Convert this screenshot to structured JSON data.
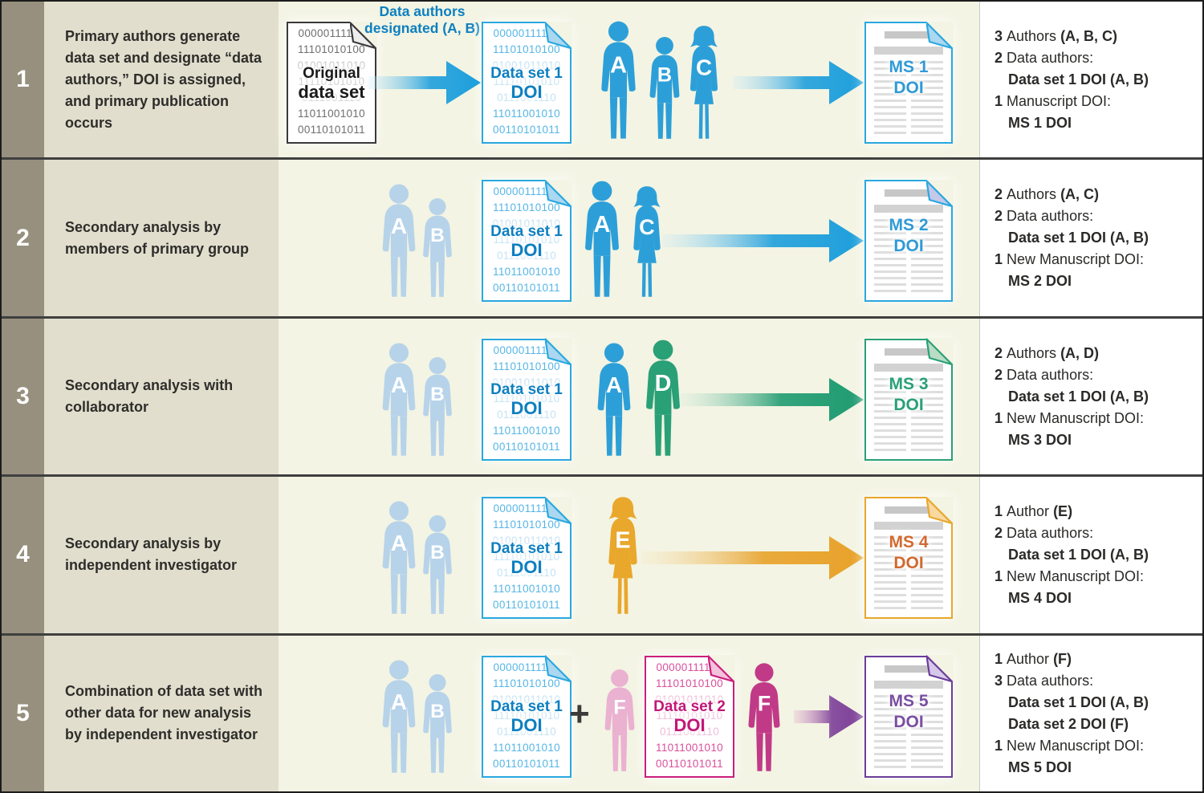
{
  "shared": {
    "colors": {
      "blue": "#29a8e0",
      "blue_text": "#2f9ad6",
      "blue_dark": "#0d7fc0",
      "green": "#2aa077",
      "gold": "#e9a72c",
      "orange_text": "#d2692f",
      "magenta": "#cb1e7d",
      "purple": "#6b3d99",
      "purple_text": "#7a4ea0",
      "num_col_bg": "#97907e",
      "desc_bg": "#e2decd",
      "mid_bg": "#f3f4e3",
      "panel_bg": "#ffffff",
      "separator": "#3f3f3f",
      "ink": "#2e2d2b",
      "plus": "#3a3a3a"
    },
    "person_colors": {
      "blue": "#2d9fd8",
      "faded_blue": "#b7d3ea",
      "green": "#2aa077",
      "gold": "#e9a72c",
      "magenta": "#c13a88",
      "pink_faded": "#eab1d1"
    },
    "binary_lines": [
      "00000111100",
      "11101010100",
      "01001011010",
      "11110101010",
      "0111001110",
      "11011001010",
      "00110101011"
    ],
    "doc_styles": {
      "orig": {
        "border": "#3a3a3a",
        "label": "#1a1a1a",
        "strong": "#6f6f6f",
        "faint": "#c9c9c9",
        "fold": "#ededed"
      },
      "ds1": {
        "border": "#29a8e0",
        "label": "#0d7fc0",
        "strong": "#56b6e6",
        "faint": "#c3e3f5",
        "fold": "#abd7f0"
      },
      "ds2": {
        "border": "#cb1e7d",
        "label": "#c21778",
        "strong": "#d94f9b",
        "faint": "#f0bcd8",
        "fold": "#f3c2db"
      }
    },
    "ms_styles": {
      "ms1": {
        "border": "#29a8e0",
        "label": "#2f9ad6",
        "fold": "#abd7f0"
      },
      "ms2": {
        "border": "#29a8e0",
        "label": "#2f9ad6",
        "fold": "#c4c9ea"
      },
      "ms3": {
        "border": "#2aa077",
        "label": "#2aa077",
        "fold": "#b9ddc4"
      },
      "ms4": {
        "border": "#e9a72c",
        "label": "#d2692f",
        "fold": "#f7d9a1"
      },
      "ms5": {
        "border": "#6b3d99",
        "label": "#7a4ea0",
        "fold": "#d6c8e9"
      }
    }
  },
  "rows": [
    {
      "number": "1",
      "description": "Primary authors generate data set and designate “data authors,” DOI is assigned, and primary publication occurs",
      "middle": {
        "orig_doc": {
          "lines": [
            "Original",
            "data set"
          ],
          "style": "orig"
        },
        "annotation": "Data authors designated (A, B)",
        "datasets": [
          {
            "lines": [
              "Data set 1",
              "DOI"
            ],
            "style": "ds1"
          }
        ],
        "people": [
          {
            "letter": "A",
            "variant": "man",
            "color": "blue"
          },
          {
            "letter": "B",
            "variant": "man",
            "color": "blue"
          },
          {
            "letter": "C",
            "variant": "woman",
            "color": "blue"
          }
        ],
        "ms": {
          "lines": [
            "MS 1",
            "DOI"
          ],
          "style": "ms1"
        },
        "arrow_colors": [
          "blue",
          "blue"
        ]
      },
      "panel": [
        {
          "ind": false,
          "seg": [
            [
              "3 ",
              true
            ],
            [
              "Authors ",
              false
            ],
            [
              "(A, B, C)",
              true
            ]
          ]
        },
        {
          "ind": false,
          "seg": [
            [
              "2 ",
              true
            ],
            [
              "Data authors:",
              false
            ]
          ]
        },
        {
          "ind": true,
          "seg": [
            [
              "Data set 1 DOI (A, B)",
              true
            ]
          ]
        },
        {
          "ind": false,
          "seg": [
            [
              "1 ",
              true
            ],
            [
              "Manuscript DOI:",
              false
            ]
          ]
        },
        {
          "ind": true,
          "seg": [
            [
              "MS 1 DOI",
              true
            ]
          ]
        }
      ]
    },
    {
      "number": "2",
      "description": "Secondary analysis by members of primary group",
      "middle": {
        "datasets": [
          {
            "lines": [
              "Data set 1",
              "DOI"
            ],
            "style": "ds1"
          }
        ],
        "people": [
          {
            "letter": "A",
            "variant": "man",
            "color": "faded_blue"
          },
          {
            "letter": "B",
            "variant": "man",
            "color": "faded_blue"
          },
          {
            "letter": "A",
            "variant": "man",
            "color": "blue"
          },
          {
            "letter": "C",
            "variant": "woman",
            "color": "blue"
          }
        ],
        "ms": {
          "lines": [
            "MS 2",
            "DOI"
          ],
          "style": "ms2"
        },
        "arrow_colors": [
          "blue"
        ]
      },
      "panel": [
        {
          "ind": false,
          "seg": [
            [
              "2 ",
              true
            ],
            [
              "Authors ",
              false
            ],
            [
              "(A, C)",
              true
            ]
          ]
        },
        {
          "ind": false,
          "seg": [
            [
              "2 ",
              true
            ],
            [
              "Data authors:",
              false
            ]
          ]
        },
        {
          "ind": true,
          "seg": [
            [
              "Data set 1 DOI (A, B)",
              true
            ]
          ]
        },
        {
          "ind": false,
          "seg": [
            [
              "1 ",
              true
            ],
            [
              "New Manuscript DOI:",
              false
            ]
          ]
        },
        {
          "ind": true,
          "seg": [
            [
              "MS 2 DOI",
              true
            ]
          ]
        }
      ]
    },
    {
      "number": "3",
      "description": "Secondary analysis with collaborator",
      "middle": {
        "datasets": [
          {
            "lines": [
              "Data set 1",
              "DOI"
            ],
            "style": "ds1"
          }
        ],
        "people": [
          {
            "letter": "A",
            "variant": "man",
            "color": "faded_blue"
          },
          {
            "letter": "B",
            "variant": "man",
            "color": "faded_blue"
          },
          {
            "letter": "A",
            "variant": "man",
            "color": "blue"
          },
          {
            "letter": "D",
            "variant": "man",
            "color": "green"
          }
        ],
        "ms": {
          "lines": [
            "MS 3",
            "DOI"
          ],
          "style": "ms3"
        },
        "arrow_colors": [
          "green"
        ]
      },
      "panel": [
        {
          "ind": false,
          "seg": [
            [
              "2 ",
              true
            ],
            [
              "Authors ",
              false
            ],
            [
              "(A, D)",
              true
            ]
          ]
        },
        {
          "ind": false,
          "seg": [
            [
              "2 ",
              true
            ],
            [
              "Data authors:",
              false
            ]
          ]
        },
        {
          "ind": true,
          "seg": [
            [
              "Data set 1 DOI (A, B)",
              true
            ]
          ]
        },
        {
          "ind": false,
          "seg": [
            [
              "1 ",
              true
            ],
            [
              "New Manuscript DOI:",
              false
            ]
          ]
        },
        {
          "ind": true,
          "seg": [
            [
              "MS 3 DOI",
              true
            ]
          ]
        }
      ]
    },
    {
      "number": "4",
      "description": "Secondary analysis by independent investigator",
      "middle": {
        "datasets": [
          {
            "lines": [
              "Data set 1",
              "DOI"
            ],
            "style": "ds1"
          }
        ],
        "people": [
          {
            "letter": "A",
            "variant": "man",
            "color": "faded_blue"
          },
          {
            "letter": "B",
            "variant": "man",
            "color": "faded_blue"
          },
          {
            "letter": "E",
            "variant": "woman",
            "color": "gold"
          }
        ],
        "ms": {
          "lines": [
            "MS 4",
            "DOI"
          ],
          "style": "ms4"
        },
        "arrow_colors": [
          "gold"
        ]
      },
      "panel": [
        {
          "ind": false,
          "seg": [
            [
              "1 ",
              true
            ],
            [
              "Author ",
              false
            ],
            [
              "(E)",
              true
            ]
          ]
        },
        {
          "ind": false,
          "seg": [
            [
              "2 ",
              true
            ],
            [
              "Data authors:",
              false
            ]
          ]
        },
        {
          "ind": true,
          "seg": [
            [
              "Data set 1 DOI (A, B)",
              true
            ]
          ]
        },
        {
          "ind": false,
          "seg": [
            [
              "1 ",
              true
            ],
            [
              "New Manuscript DOI:",
              false
            ]
          ]
        },
        {
          "ind": true,
          "seg": [
            [
              "MS 4 DOI",
              true
            ]
          ]
        }
      ]
    },
    {
      "number": "5",
      "description": "Combination of data set with other data for new analysis by independent investigator",
      "middle": {
        "datasets": [
          {
            "lines": [
              "Data set 1",
              "DOI"
            ],
            "style": "ds1"
          },
          {
            "lines": [
              "Data set 2",
              "DOI"
            ],
            "style": "ds2"
          }
        ],
        "plus": "+",
        "people": [
          {
            "letter": "A",
            "variant": "man",
            "color": "faded_blue"
          },
          {
            "letter": "B",
            "variant": "man",
            "color": "faded_blue"
          },
          {
            "letter": "F",
            "variant": "man",
            "color": "pink_faded"
          },
          {
            "letter": "F",
            "variant": "man",
            "color": "magenta"
          }
        ],
        "ms": {
          "lines": [
            "MS 5",
            "DOI"
          ],
          "style": "ms5"
        },
        "arrow_colors": [
          "pinkpurple"
        ]
      },
      "panel": [
        {
          "ind": false,
          "seg": [
            [
              "1 ",
              true
            ],
            [
              "Author ",
              false
            ],
            [
              "(F)",
              true
            ]
          ]
        },
        {
          "ind": false,
          "seg": [
            [
              "3 ",
              true
            ],
            [
              "Data authors:",
              false
            ]
          ]
        },
        {
          "ind": true,
          "seg": [
            [
              "Data set 1 DOI (A, B)",
              true
            ]
          ]
        },
        {
          "ind": true,
          "seg": [
            [
              "Data set 2 DOI (F)",
              true
            ]
          ]
        },
        {
          "ind": false,
          "seg": [
            [
              "1 ",
              true
            ],
            [
              "New Manuscript DOI:",
              false
            ]
          ]
        },
        {
          "ind": true,
          "seg": [
            [
              "MS 5 DOI",
              true
            ]
          ]
        }
      ]
    }
  ]
}
